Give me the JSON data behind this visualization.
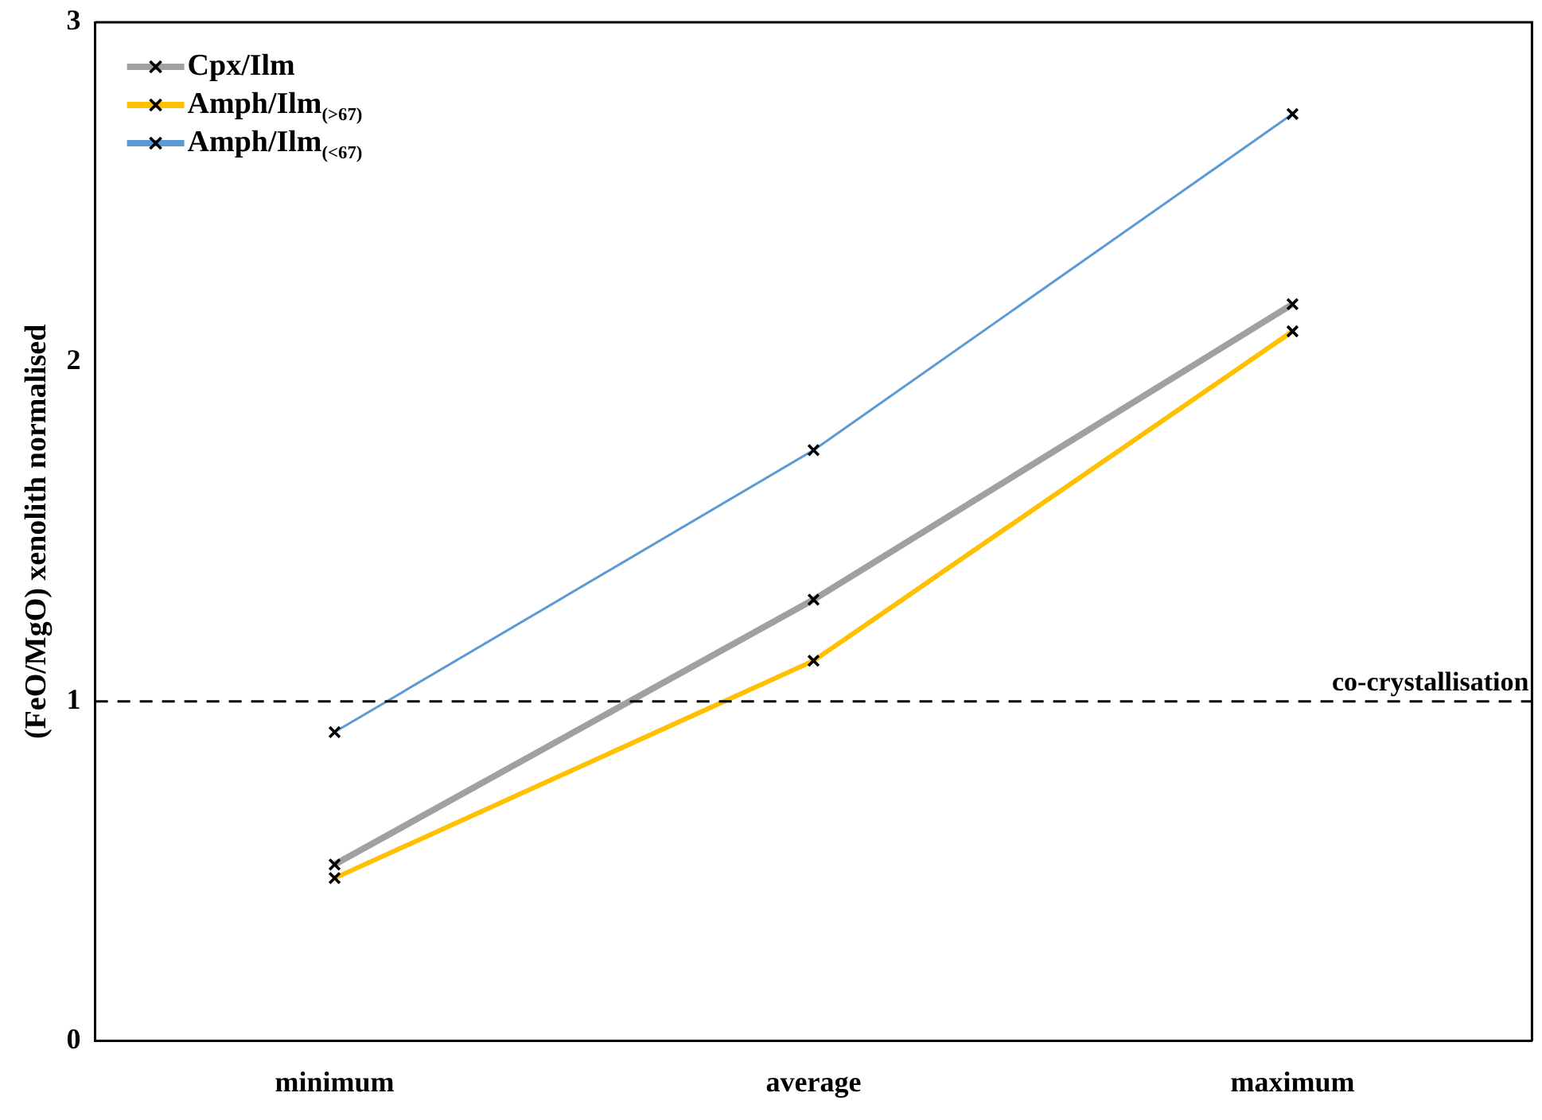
{
  "chart_data": {
    "type": "line",
    "ylabel": "(FeO/MgO) xenolith normalised",
    "categories": [
      "minimum",
      "average",
      "maximum"
    ],
    "series": [
      {
        "name": "Cpx/Ilm",
        "color": "#a0a0a0",
        "values": [
          0.52,
          1.3,
          2.17
        ]
      },
      {
        "name": "Amph/Ilm$_{(>67)}$",
        "color": "#ffc000",
        "values": [
          0.48,
          1.12,
          2.09
        ]
      },
      {
        "name": "Amph/Ilm$_{(<67)}$",
        "color": "#5b9bd5",
        "values": [
          0.91,
          1.74,
          2.73
        ]
      }
    ],
    "ylim": [
      0,
      3
    ],
    "yticks": [
      0,
      1,
      2,
      3
    ],
    "grid": false,
    "legend": "top left",
    "marker": "cross",
    "line_style": "solid",
    "ref_lines": [
      {
        "axis": "y",
        "value": 1,
        "label": "co-crystallisation",
        "color": "#000000",
        "line_style": "dashed"
      }
    ]
  }
}
